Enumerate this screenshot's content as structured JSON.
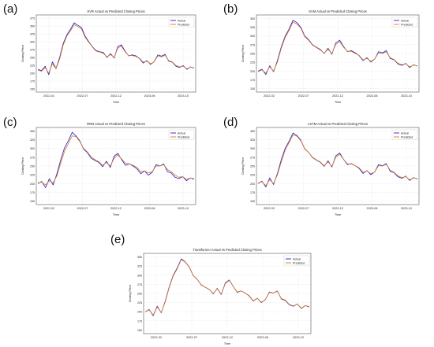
{
  "panel_letters": [
    "(a)",
    "(b)",
    "(c)",
    "(d)",
    "(e)"
  ],
  "colors": {
    "actual": "#1f1fd6",
    "predicted": "#d97a20",
    "grid": "#d9d9d9",
    "axis": "#555555"
  },
  "chart_data": [
    {
      "type": "line",
      "title": "SVR Actual vs Predicted Closing Prices",
      "xlabel": "Time",
      "ylabel": "Closing Price",
      "x_ticks": [
        "2022-01",
        "2022-07",
        "2022-12",
        "2023-06",
        "2023-10"
      ],
      "y_ticks": [
        "150",
        "175",
        "200",
        "225",
        "250",
        "275",
        "300",
        "325",
        "350",
        "375"
      ],
      "ylim": [
        140,
        385
      ],
      "grid": true,
      "legend": "top-right",
      "series": [
        {
          "name": "Actual",
          "values": [
            212,
            208,
            222,
            195,
            236,
            215,
            250,
            295,
            322,
            340,
            360,
            352,
            345,
            318,
            300,
            284,
            272,
            268,
            266,
            250,
            262,
            248,
            285,
            290,
            270,
            255,
            258,
            255,
            246,
            232,
            240,
            228,
            236,
            258,
            254,
            260,
            238,
            235,
            222,
            218,
            224,
            212,
            220,
            216
          ]
        },
        {
          "name": "Predicted",
          "values": [
            210,
            206,
            218,
            200,
            230,
            214,
            245,
            290,
            318,
            335,
            354,
            348,
            340,
            314,
            298,
            283,
            270,
            267,
            263,
            252,
            259,
            250,
            280,
            286,
            268,
            256,
            256,
            253,
            247,
            235,
            238,
            230,
            236,
            255,
            252,
            257,
            240,
            236,
            224,
            220,
            222,
            214,
            219,
            217
          ]
        }
      ]
    },
    {
      "type": "line",
      "title": "SVM Actual vs Predicted Closing Prices",
      "xlabel": "Time",
      "ylabel": "Closing Price",
      "x_ticks": [
        "2022-02",
        "2022-07",
        "2022-12",
        "2023-06",
        "2023-10"
      ],
      "y_ticks": [
        "150",
        "175",
        "200",
        "225",
        "250",
        "275",
        "300",
        "325",
        "350"
      ],
      "ylim": [
        140,
        360
      ],
      "grid": true,
      "legend": "top-right",
      "series": [
        {
          "name": "Actual",
          "values": [
            200,
            205,
            190,
            215,
            198,
            230,
            270,
            300,
            320,
            345,
            338,
            325,
            300,
            290,
            275,
            268,
            262,
            250,
            265,
            248,
            280,
            288,
            270,
            255,
            258,
            252,
            244,
            230,
            238,
            226,
            234,
            255,
            252,
            258,
            236,
            232,
            220,
            216,
            222,
            210,
            218,
            214
          ]
        },
        {
          "name": "Predicted",
          "values": [
            198,
            203,
            194,
            212,
            200,
            226,
            266,
            296,
            316,
            340,
            334,
            322,
            298,
            288,
            274,
            267,
            260,
            251,
            262,
            250,
            276,
            284,
            268,
            256,
            256,
            250,
            245,
            232,
            236,
            228,
            234,
            252,
            250,
            255,
            238,
            233,
            222,
            218,
            221,
            212,
            217,
            215
          ]
        }
      ]
    },
    {
      "type": "line",
      "title": "RNN Actual vs Predicted Closing Prices",
      "xlabel": "Time",
      "ylabel": "Closing Price",
      "x_ticks": [
        "2022-02",
        "2022-07",
        "2022-12",
        "2023-06",
        "2023-10"
      ],
      "y_ticks": [
        "150",
        "175",
        "200",
        "225",
        "250",
        "275",
        "300",
        "325",
        "350"
      ],
      "ylim": [
        140,
        360
      ],
      "grid": true,
      "legend": "top-right",
      "series": [
        {
          "name": "Actual",
          "values": [
            200,
            206,
            188,
            214,
            196,
            228,
            268,
            302,
            322,
            346,
            336,
            322,
            298,
            288,
            272,
            266,
            260,
            248,
            264,
            246,
            278,
            286,
            268,
            252,
            256,
            250,
            242,
            228,
            236,
            224,
            232,
            254,
            250,
            256,
            234,
            230,
            218,
            214,
            220,
            208,
            216,
            212
          ]
        },
        {
          "name": "Predicted",
          "values": [
            202,
            204,
            196,
            208,
            202,
            222,
            258,
            292,
            314,
            336,
            334,
            320,
            300,
            290,
            276,
            268,
            262,
            252,
            260,
            250,
            272,
            282,
            270,
            258,
            256,
            252,
            246,
            234,
            236,
            230,
            234,
            250,
            250,
            254,
            240,
            234,
            224,
            218,
            220,
            212,
            216,
            214
          ]
        }
      ]
    },
    {
      "type": "line",
      "title": "LSTM Actual vs Predicted Closing Prices",
      "xlabel": "Time",
      "ylabel": "Closing Price",
      "x_ticks": [
        "2022-02",
        "2022-07",
        "2022-12",
        "2023-06",
        "2023-10"
      ],
      "y_ticks": [
        "150",
        "175",
        "200",
        "225",
        "250",
        "275",
        "300",
        "325",
        "350"
      ],
      "ylim": [
        140,
        360
      ],
      "grid": true,
      "legend": "top-right",
      "series": [
        {
          "name": "Actual",
          "values": [
            200,
            207,
            190,
            216,
            197,
            229,
            269,
            301,
            321,
            344,
            337,
            324,
            299,
            289,
            274,
            267,
            261,
            249,
            265,
            247,
            279,
            287,
            269,
            254,
            257,
            251,
            243,
            229,
            237,
            225,
            233,
            254,
            251,
            257,
            235,
            231,
            219,
            215,
            221,
            209,
            217,
            213
          ]
        },
        {
          "name": "Predicted",
          "values": [
            201,
            205,
            194,
            211,
            200,
            225,
            263,
            296,
            317,
            339,
            335,
            322,
            300,
            289,
            275,
            268,
            262,
            251,
            262,
            249,
            275,
            284,
            269,
            256,
            256,
            251,
            245,
            232,
            236,
            228,
            233,
            251,
            250,
            255,
            238,
            232,
            222,
            217,
            220,
            211,
            216,
            214
          ]
        }
      ]
    },
    {
      "type": "line",
      "title": "Transformer Actual vs Predicted Closing Prices",
      "xlabel": "Time",
      "ylabel": "Closing Price",
      "x_ticks": [
        "2022-02",
        "2022-07",
        "2022-12",
        "2023-06",
        "2023-10"
      ],
      "y_ticks": [
        "150",
        "175",
        "200",
        "225",
        "250",
        "275",
        "300",
        "325",
        "350"
      ],
      "ylim": [
        140,
        360
      ],
      "grid": true,
      "legend": "top-right",
      "series": [
        {
          "name": "Actual",
          "values": [
            200,
            206,
            189,
            215,
            197,
            229,
            268,
            300,
            320,
            345,
            337,
            323,
            299,
            289,
            273,
            267,
            261,
            249,
            264,
            247,
            279,
            287,
            269,
            253,
            257,
            251,
            243,
            229,
            237,
            225,
            233,
            254,
            251,
            257,
            235,
            231,
            219,
            215,
            221,
            209,
            217,
            213
          ]
        },
        {
          "name": "Predicted",
          "values": [
            200,
            205,
            191,
            213,
            198,
            227,
            266,
            298,
            318,
            343,
            336,
            322,
            299,
            289,
            274,
            267,
            261,
            250,
            263,
            248,
            277,
            286,
            269,
            254,
            257,
            251,
            244,
            230,
            237,
            226,
            233,
            253,
            251,
            256,
            236,
            232,
            220,
            216,
            221,
            210,
            217,
            214
          ]
        }
      ]
    }
  ]
}
